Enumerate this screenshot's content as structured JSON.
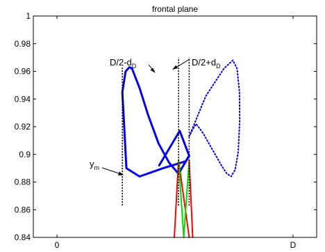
{
  "chart_data": {
    "type": "line",
    "title": "frontal plane",
    "xlabel": "",
    "ylabel": "",
    "xlim": [
      -0.1,
      1.1
    ],
    "ylim": [
      0.84,
      1.0
    ],
    "x_ticks": [
      {
        "value": 0,
        "label": "0"
      },
      {
        "value": 1,
        "label": "D"
      }
    ],
    "y_ticks": [
      {
        "value": 0.84,
        "label": "0.84"
      },
      {
        "value": 0.86,
        "label": "0.86"
      },
      {
        "value": 0.88,
        "label": "0.88"
      },
      {
        "value": 0.9,
        "label": "0.9"
      },
      {
        "value": 0.92,
        "label": "0.92"
      },
      {
        "value": 0.94,
        "label": "0.94"
      },
      {
        "value": 0.96,
        "label": "0.96"
      },
      {
        "value": 0.98,
        "label": "0.98"
      },
      {
        "value": 1,
        "label": "1"
      }
    ],
    "grid": false,
    "series": [
      {
        "style": "solid",
        "color": "#0000ee",
        "x": [
          0.433,
          0.52,
          0.56,
          0.545,
          0.45,
          0.35,
          0.294,
          0.277,
          0.291,
          0.307,
          0.318,
          0.35,
          0.385,
          0.43,
          0.475,
          0.515,
          0.56,
          0.545
        ],
        "y": [
          0.892,
          0.917,
          0.899,
          0.895,
          0.89,
          0.884,
          0.89,
          0.945,
          0.96,
          0.963,
          0.962,
          0.948,
          0.929,
          0.908,
          0.894,
          0.886,
          0.899,
          0.895
        ]
      },
      {
        "style": "dotted",
        "color": "#0000ee",
        "x": [
          0.56,
          0.63,
          0.707,
          0.745,
          0.763,
          0.773,
          0.774,
          0.768,
          0.755,
          0.738,
          0.72,
          0.7,
          0.68,
          0.66,
          0.64,
          0.62,
          0.603,
          0.59,
          0.575,
          0.56
        ],
        "y": [
          0.913,
          0.942,
          0.962,
          0.968,
          0.962,
          0.945,
          0.925,
          0.902,
          0.889,
          0.884,
          0.886,
          0.891,
          0.897,
          0.903,
          0.909,
          0.915,
          0.919,
          0.922,
          0.918,
          0.913
        ]
      },
      {
        "style": "solid",
        "color": "#ff0000",
        "x": [
          0.497,
          0.515,
          0.56
        ],
        "y": [
          0.84,
          0.896,
          0.84
        ]
      },
      {
        "style": "solid",
        "color": "#00dd00",
        "x": [
          0.515,
          0.537,
          0.56
        ],
        "y": [
          0.896,
          0.84,
          0.896
        ]
      },
      {
        "style": "solid",
        "color": "#ff0000",
        "x": [
          0.56,
          0.575
        ],
        "y": [
          0.896,
          0.84
        ]
      }
    ],
    "markers": [
      {
        "x": 0.277,
        "ymin": 0.863,
        "ymax": 0.963,
        "style": "dotted",
        "color": "#000000"
      },
      {
        "x": 0.515,
        "ymin": 0.863,
        "ymax": 0.97,
        "style": "dotted",
        "color": "#000000"
      },
      {
        "x": 0.56,
        "ymin": 0.863,
        "ymax": 0.97,
        "style": "dotted",
        "color": "#000000"
      }
    ],
    "annotations": [
      {
        "label": "D/2-d",
        "subscript": "D"
      },
      {
        "label": "D/2+d",
        "subscript": "D"
      },
      {
        "label": "y",
        "subscript": "m"
      }
    ]
  }
}
